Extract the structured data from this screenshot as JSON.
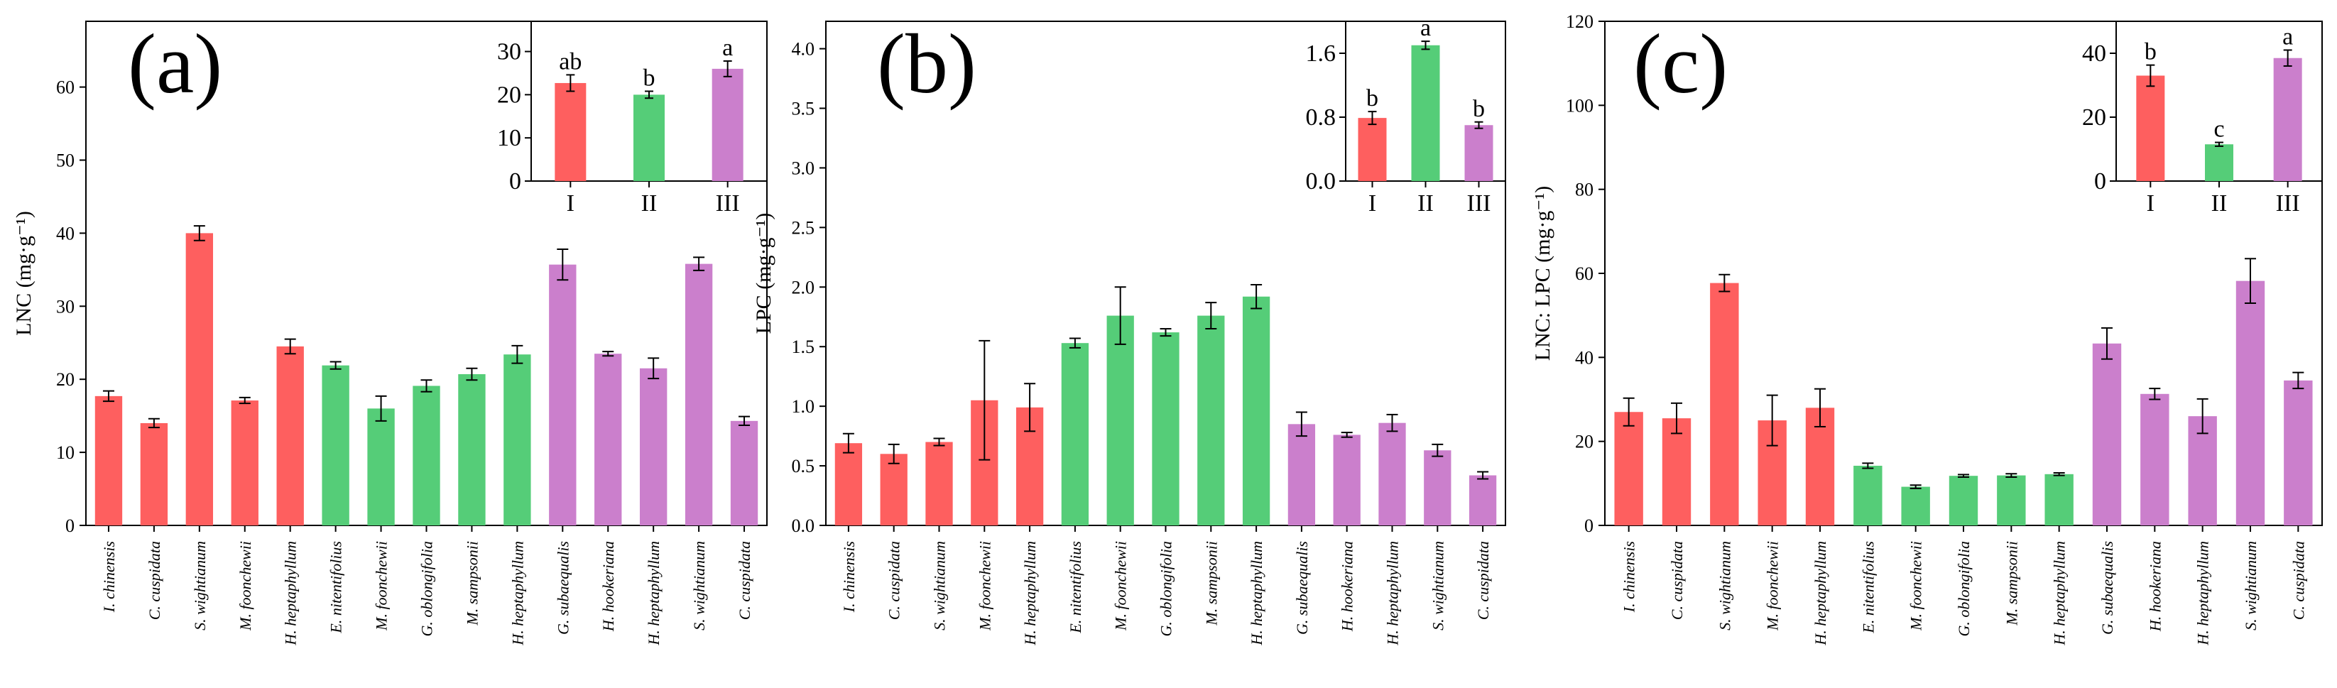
{
  "colors": {
    "I": "#fe5f5f",
    "II": "#55cd78",
    "III": "#cb7fcc"
  },
  "chart_data": [
    {
      "type": "bar",
      "panel_label": "(a)",
      "ylabel": "LNC (mg·g⁻¹)",
      "ylim": [
        0,
        69
      ],
      "yticks": [
        "0",
        "10",
        "20",
        "30",
        "40",
        "50",
        "60"
      ],
      "categories": [
        "I. chinensis",
        "C. cuspidata",
        "S. wightianum",
        "M. foonchewii",
        "H. heptaphyllum",
        "E. nitentifolius",
        "M. foonchewii",
        "G. oblongifolia",
        "M. sampsonii",
        "H. heptaphyllum",
        "G. subaequalis",
        "H. hookeriana",
        "H. heptaphyllum",
        "S. wightianum",
        "C. cuspidata"
      ],
      "groups": [
        "I",
        "I",
        "I",
        "I",
        "I",
        "II",
        "II",
        "II",
        "II",
        "II",
        "III",
        "III",
        "III",
        "III",
        "III"
      ],
      "values": [
        17.7,
        14.0,
        40.0,
        17.1,
        24.5,
        21.9,
        16.0,
        19.1,
        20.7,
        23.4,
        35.7,
        23.5,
        21.5,
        35.8,
        14.3
      ],
      "errors": [
        0.7,
        0.6,
        1.0,
        0.4,
        1.0,
        0.5,
        1.7,
        0.8,
        0.8,
        1.2,
        2.1,
        0.3,
        1.4,
        0.9,
        0.6
      ],
      "inset": {
        "categories": [
          "I",
          "II",
          "III"
        ],
        "values": [
          22.7,
          20.0,
          26.0
        ],
        "errors": [
          1.9,
          0.8,
          1.8
        ],
        "letters": [
          "ab",
          "b",
          "a"
        ],
        "ylim": [
          0,
          37
        ],
        "yticks": [
          "0",
          "10",
          "20",
          "30"
        ]
      }
    },
    {
      "type": "bar",
      "panel_label": "(b)",
      "ylabel": "LPC (mg·g⁻¹)",
      "ylim": [
        0,
        4.23
      ],
      "yticks": [
        "0.0",
        "0.5",
        "1.0",
        "1.5",
        "2.0",
        "2.5",
        "3.0",
        "3.5",
        "4.0"
      ],
      "categories": [
        "I. chinensis",
        "C. cuspidata",
        "S. wightianum",
        "M. foonchewii",
        "H. heptaphyllum",
        "E. nitentifolius",
        "M. foonchewii",
        "G. oblongifolia",
        "M. sampsonii",
        "H. heptaphyllum",
        "G. subaequalis",
        "H. hookeriana",
        "H. heptaphyllum",
        "S. wightianum",
        "C. cuspidata"
      ],
      "groups": [
        "I",
        "I",
        "I",
        "I",
        "I",
        "II",
        "II",
        "II",
        "II",
        "II",
        "III",
        "III",
        "III",
        "III",
        "III"
      ],
      "values": [
        0.69,
        0.6,
        0.7,
        1.05,
        0.99,
        1.53,
        1.76,
        1.62,
        1.76,
        1.92,
        0.85,
        0.76,
        0.86,
        0.63,
        0.42
      ],
      "errors": [
        0.08,
        0.08,
        0.03,
        0.5,
        0.2,
        0.04,
        0.24,
        0.03,
        0.11,
        0.1,
        0.1,
        0.02,
        0.07,
        0.05,
        0.03
      ],
      "inset": {
        "categories": [
          "I",
          "II",
          "III"
        ],
        "values": [
          0.79,
          1.7,
          0.7
        ],
        "errors": [
          0.08,
          0.05,
          0.04
        ],
        "letters": [
          "b",
          "a",
          "b"
        ],
        "ylim": [
          0,
          2.0
        ],
        "yticks": [
          "0.0",
          "0.8",
          "1.6"
        ]
      }
    },
    {
      "type": "bar",
      "panel_label": "(c)",
      "ylabel": "LNC: LPC (mg·g⁻¹)",
      "ylim": [
        0,
        120
      ],
      "yticks": [
        "0",
        "20",
        "40",
        "60",
        "80",
        "100",
        "120"
      ],
      "categories": [
        "I. chinensis",
        "C. cuspidata",
        "S. wightianum",
        "M. foonchewii",
        "H. heptaphyllum",
        "E. nitentifolius",
        "M. foonchewii",
        "G. oblongifolia",
        "M. sampsonii",
        "H. heptaphyllum",
        "G. subaequalis",
        "H. hookeriana",
        "H. heptaphyllum",
        "S. wightianum",
        "C. cuspidata"
      ],
      "groups": [
        "I",
        "I",
        "I",
        "I",
        "I",
        "II",
        "II",
        "II",
        "II",
        "II",
        "III",
        "III",
        "III",
        "III",
        "III"
      ],
      "values": [
        27.0,
        25.5,
        57.7,
        25.0,
        28.0,
        14.2,
        9.2,
        11.8,
        11.9,
        12.2,
        43.3,
        31.3,
        26.0,
        58.2,
        34.5
      ],
      "errors": [
        3.3,
        3.6,
        2.0,
        6.0,
        4.5,
        0.6,
        0.4,
        0.3,
        0.4,
        0.3,
        3.7,
        1.3,
        4.1,
        5.3,
        1.9
      ],
      "inset": {
        "categories": [
          "I",
          "II",
          "III"
        ],
        "values": [
          33.0,
          11.5,
          38.5
        ],
        "errors": [
          3.3,
          0.6,
          2.5
        ],
        "letters": [
          "b",
          "c",
          "a"
        ],
        "ylim": [
          0,
          50
        ],
        "yticks": [
          "0",
          "20",
          "40"
        ]
      }
    }
  ]
}
